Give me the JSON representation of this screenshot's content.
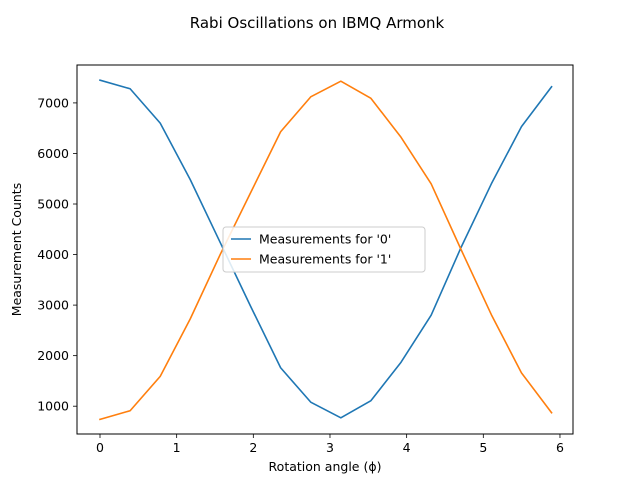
{
  "chart_data": {
    "type": "line",
    "title": "Rabi Oscillations on IBMQ Armonk",
    "xlabel": "Rotation angle (ϕ)",
    "ylabel": "Measurement Counts",
    "xlim": [
      -0.3,
      6.17
    ],
    "ylim": [
      450,
      7750
    ],
    "xticks": [
      0,
      1,
      2,
      3,
      4,
      5,
      6
    ],
    "yticks": [
      1000,
      2000,
      3000,
      4000,
      5000,
      6000,
      7000
    ],
    "grid": false,
    "legend_position": "center",
    "x": [
      0,
      0.3927,
      0.7854,
      1.1781,
      1.5708,
      1.9635,
      2.3562,
      2.7489,
      3.1416,
      3.5343,
      3.927,
      4.3197,
      4.7124,
      5.1051,
      5.4978,
      5.8905
    ],
    "series": [
      {
        "name": "Measurements for '0'",
        "color": "#1f77b4",
        "values": [
          7450,
          7280,
          6600,
          5480,
          4230,
          2980,
          1760,
          1080,
          770,
          1110,
          1870,
          2800,
          4150,
          5400,
          6530,
          7320
        ]
      },
      {
        "name": "Measurements for '1'",
        "color": "#ff7f0e",
        "values": [
          740,
          910,
          1590,
          2730,
          4010,
          5220,
          6430,
          7120,
          7430,
          7090,
          6320,
          5400,
          4090,
          2810,
          1660,
          870
        ]
      }
    ]
  }
}
